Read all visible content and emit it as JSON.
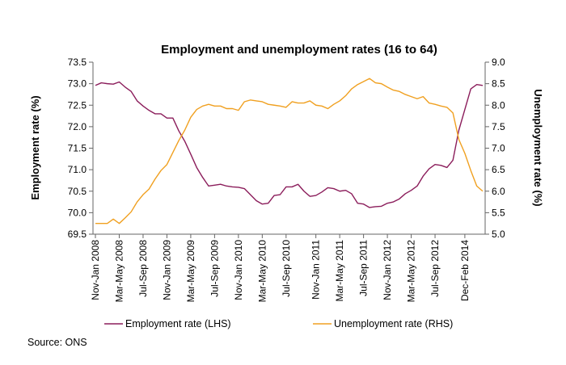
{
  "chart_data": {
    "type": "line",
    "title": "Employment and unemployment rates (16 to 64)",
    "ylabel_left": "Employment rate (%)",
    "ylabel_right": "Unemployment rate (%)",
    "ylim_left": [
      69.5,
      73.5
    ],
    "ylim_right": [
      5.0,
      9.0
    ],
    "yticks_left": [
      "69.5",
      "70.0",
      "70.5",
      "71.0",
      "71.5",
      "72.0",
      "72.5",
      "73.0",
      "73.5"
    ],
    "yticks_right": [
      "5.0",
      "5.5",
      "6.0",
      "6.5",
      "7.0",
      "7.5",
      "8.0",
      "8.5",
      "9.0"
    ],
    "x_tick_labels": [
      "Nov-Jan 2008",
      "Mar-May 2008",
      "Jul-Sep 2008",
      "Nov-Jan 2009",
      "Mar-May 2009",
      "Jul-Sep 2009",
      "Nov-Jan 2010",
      "Mar-May 2010",
      "Jul-Sep 2010",
      "Nov-Jan 2011",
      "Mar-May 2011",
      "Jul-Sep 2011",
      "Nov-Jan 2012",
      "Mar-May 2012",
      "Jul-Sep 2012",
      "Dec-Feb 2014"
    ],
    "x_tick_positions": [
      0,
      4,
      8,
      12,
      16,
      20,
      24,
      28,
      32,
      37,
      41,
      45,
      49,
      53,
      57,
      62
    ],
    "n_points": 66,
    "series": [
      {
        "name": "Employment rate (LHS)",
        "axis": "left",
        "color": "#8b1d5b",
        "values": [
          72.96,
          73.02,
          73.0,
          72.99,
          73.04,
          72.92,
          72.82,
          72.6,
          72.48,
          72.38,
          72.3,
          72.3,
          72.2,
          72.2,
          71.9,
          71.66,
          71.36,
          71.05,
          70.82,
          70.62,
          70.64,
          70.66,
          70.62,
          70.6,
          70.59,
          70.56,
          70.42,
          70.28,
          70.2,
          70.22,
          70.4,
          70.42,
          70.6,
          70.6,
          70.66,
          70.5,
          70.38,
          70.4,
          70.48,
          70.58,
          70.56,
          70.5,
          70.52,
          70.44,
          70.22,
          70.2,
          70.12,
          70.14,
          70.15,
          70.22,
          70.25,
          70.32,
          70.44,
          70.52,
          70.62,
          70.85,
          71.02,
          71.12,
          71.1,
          71.05,
          71.22,
          71.92,
          72.4,
          72.88,
          72.98,
          72.96
        ]
      },
      {
        "name": "Unemployment rate (RHS)",
        "axis": "right",
        "color": "#f0a020",
        "values": [
          5.25,
          5.25,
          5.25,
          5.35,
          5.25,
          5.38,
          5.52,
          5.75,
          5.92,
          6.05,
          6.28,
          6.48,
          6.62,
          6.9,
          7.18,
          7.42,
          7.72,
          7.9,
          7.98,
          8.02,
          7.98,
          7.98,
          7.92,
          7.92,
          7.88,
          8.08,
          8.12,
          8.1,
          8.08,
          8.02,
          8.0,
          7.98,
          7.95,
          8.08,
          8.05,
          8.05,
          8.1,
          8.0,
          7.98,
          7.92,
          8.02,
          8.1,
          8.22,
          8.38,
          8.48,
          8.55,
          8.62,
          8.52,
          8.5,
          8.42,
          8.35,
          8.32,
          8.25,
          8.2,
          8.15,
          8.2,
          8.05,
          8.02,
          7.98,
          7.95,
          7.82,
          7.2,
          6.88,
          6.48,
          6.12,
          6.0
        ]
      }
    ],
    "legend": [
      {
        "label": "Employment rate (LHS)",
        "color": "#8b1d5b"
      },
      {
        "label": "Unemployment rate (RHS)",
        "color": "#f0a020"
      }
    ],
    "legend_position": "bottom",
    "grid": false
  },
  "source": "Source: ONS"
}
